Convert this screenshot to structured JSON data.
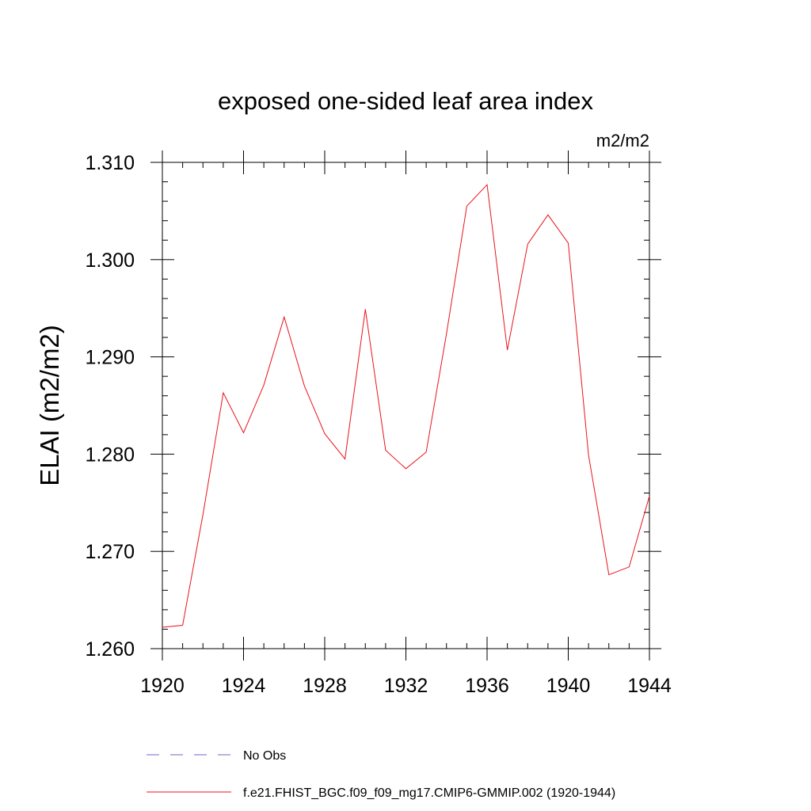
{
  "chart_data": {
    "type": "line",
    "title": "exposed one-sided leaf area index",
    "units": "m2/m2",
    "xlabel": "",
    "ylabel": "ELAI  (m2/m2)",
    "xlim": [
      1920,
      1944
    ],
    "ylim": [
      1.26,
      1.31
    ],
    "x_ticks": [
      1920,
      1924,
      1928,
      1932,
      1936,
      1940,
      1944
    ],
    "y_ticks": [
      "1.260",
      "1.270",
      "1.280",
      "1.290",
      "1.300",
      "1.310"
    ],
    "grid": false,
    "series": [
      {
        "name": "f.e21.FHIST_BGC.f09_f09_mg17.CMIP6-GMMIP.002 (1920-1944)",
        "color": "#e8141c",
        "x": [
          1920,
          1921,
          1922,
          1923,
          1924,
          1925,
          1926,
          1927,
          1928,
          1929,
          1930,
          1931,
          1932,
          1933,
          1934,
          1935,
          1936,
          1937,
          1938,
          1939,
          1940,
          1941,
          1942,
          1943,
          1944
        ],
        "y": [
          1.2622,
          1.2624,
          1.2738,
          1.2863,
          1.2822,
          1.2871,
          1.2941,
          1.287,
          1.2821,
          1.2795,
          1.2949,
          1.2804,
          1.2785,
          1.2802,
          1.2924,
          1.3055,
          1.3077,
          1.2907,
          1.3016,
          1.3046,
          1.3017,
          1.2799,
          1.2676,
          1.2684,
          1.2757
        ]
      }
    ],
    "legend": [
      {
        "label": "No Obs",
        "color": "#6a6acd",
        "style": "dashed"
      },
      {
        "label": "f.e21.FHIST_BGC.f09_f09_mg17.CMIP6-GMMIP.002 (1920-1944)",
        "color": "#e8141c",
        "style": "solid"
      }
    ],
    "legend_position": "bottom"
  }
}
